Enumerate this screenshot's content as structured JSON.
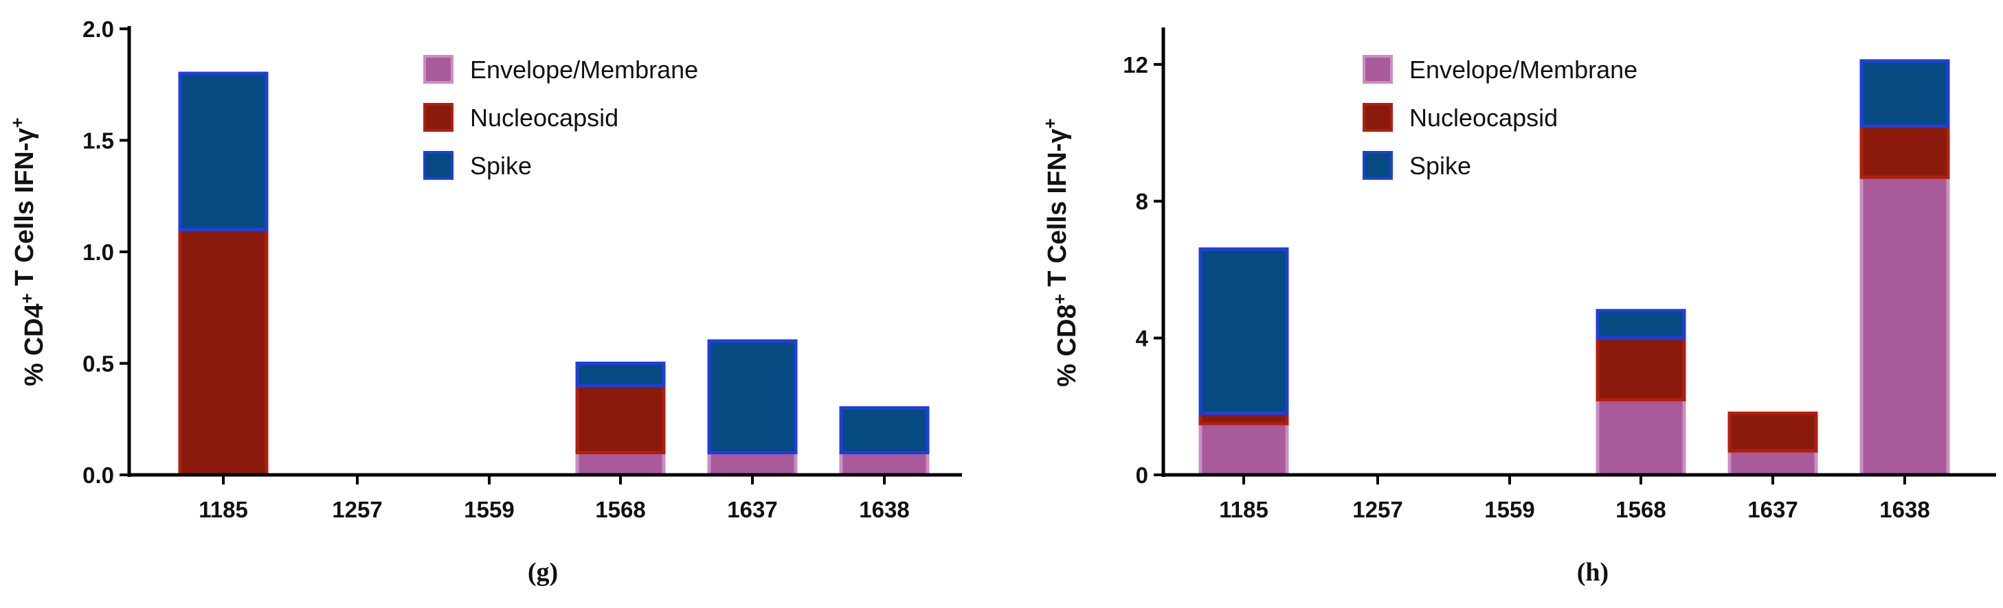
{
  "colors": {
    "envelope_fill": "#A85A9A",
    "envelope_stroke": "#C98FC0",
    "nucleocapsid_fill": "#8A1A0C",
    "nucleocapsid_stroke": "#B0200F",
    "spike_fill": "#064A82",
    "spike_stroke": "#1F3FD8",
    "axis": "#000000"
  },
  "chart_data": [
    {
      "type": "bar",
      "stacked": true,
      "panel_label": "(g)",
      "ylabel_parts": {
        "prefix": "% CD4",
        "sup1": "+",
        "middle": " T Cells IFN-γ",
        "sup2": "+"
      },
      "categories": [
        "1185",
        "1257",
        "1559",
        "1568",
        "1637",
        "1638"
      ],
      "ylim": [
        0,
        2.0
      ],
      "yticks": [
        0.0,
        0.5,
        1.0,
        1.5,
        2.0
      ],
      "ytick_labels": [
        "0.0",
        "0.5",
        "1.0",
        "1.5",
        "2.0"
      ],
      "legend_position": "top-right",
      "series": [
        {
          "name": "Envelope/Membrane",
          "key": "envelope",
          "values": [
            0,
            0,
            0,
            0.1,
            0.1,
            0.1
          ]
        },
        {
          "name": "Nucleocapsid",
          "key": "nucleocapsid",
          "values": [
            1.1,
            0,
            0,
            0.3,
            0,
            0
          ]
        },
        {
          "name": "Spike",
          "key": "spike",
          "values": [
            0.7,
            0,
            0,
            0.1,
            0.5,
            0.2
          ]
        }
      ]
    },
    {
      "type": "bar",
      "stacked": true,
      "panel_label": "(h)",
      "ylabel_parts": {
        "prefix": "% CD8",
        "sup1": "+",
        "middle": " T Cells IFN-γ",
        "sup2": "+"
      },
      "categories": [
        "1185",
        "1257",
        "1559",
        "1568",
        "1637",
        "1638"
      ],
      "ylim": [
        0,
        13
      ],
      "yticks": [
        0,
        4,
        8,
        12
      ],
      "ytick_labels": [
        "0",
        "4",
        "8",
        "12"
      ],
      "legend_position": "top-center",
      "series": [
        {
          "name": "Envelope/Membrane",
          "key": "envelope",
          "values": [
            1.5,
            0,
            0,
            2.2,
            0.7,
            8.7
          ]
        },
        {
          "name": "Nucleocapsid",
          "key": "nucleocapsid",
          "values": [
            0.3,
            0,
            0,
            1.8,
            1.1,
            1.5
          ]
        },
        {
          "name": "Spike",
          "key": "spike",
          "values": [
            4.8,
            0,
            0,
            0.8,
            0,
            1.9
          ]
        }
      ]
    }
  ]
}
